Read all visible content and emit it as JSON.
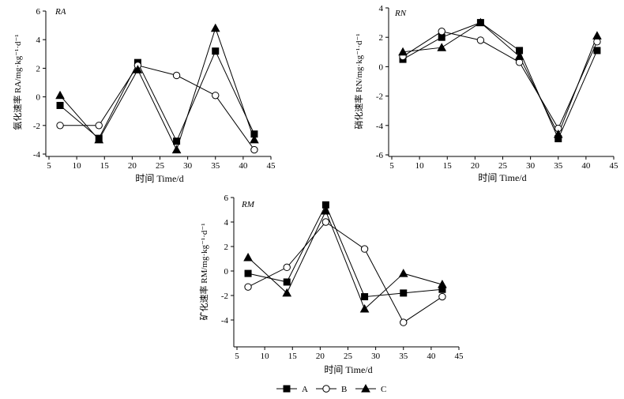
{
  "chart_data": [
    {
      "id": "RA",
      "type": "line",
      "panel_label": "RA",
      "xlabel": "时间 Time/d",
      "ylabel": "氨化速率 RA/mg·kg⁻¹·d⁻¹",
      "xlim": [
        5,
        45
      ],
      "ylim": [
        -4,
        6
      ],
      "x_ticks": [
        5,
        10,
        15,
        20,
        25,
        30,
        35,
        40,
        45
      ],
      "y_ticks": [
        -4,
        -2,
        0,
        2,
        4,
        6
      ],
      "x": [
        7,
        14,
        21,
        28,
        35,
        42
      ],
      "series": [
        {
          "name": "A",
          "marker": "square",
          "values": [
            -0.6,
            -2.9,
            2.4,
            -3.1,
            3.2,
            -2.6
          ]
        },
        {
          "name": "B",
          "marker": "circle",
          "values": [
            -2.0,
            -2.0,
            2.2,
            1.5,
            0.1,
            -3.7
          ]
        },
        {
          "name": "C",
          "marker": "triangle",
          "values": [
            0.1,
            -3.0,
            1.9,
            -3.7,
            4.8,
            -3.0
          ]
        }
      ]
    },
    {
      "id": "RN",
      "type": "line",
      "panel_label": "RN",
      "xlabel": "时间 Time/d",
      "ylabel": "硝化速率 RN/mg·kg⁻¹·d⁻¹",
      "xlim": [
        5,
        45
      ],
      "ylim": [
        -6,
        4
      ],
      "x_ticks": [
        5,
        10,
        15,
        20,
        25,
        30,
        35,
        40,
        45
      ],
      "y_ticks": [
        -6,
        -4,
        -2,
        0,
        2,
        4
      ],
      "x": [
        7,
        14,
        21,
        28,
        35,
        42
      ],
      "series": [
        {
          "name": "A",
          "marker": "square",
          "values": [
            0.5,
            2.0,
            3.0,
            1.1,
            -4.9,
            1.1
          ]
        },
        {
          "name": "B",
          "marker": "circle",
          "values": [
            0.7,
            2.4,
            1.8,
            0.3,
            -4.2,
            1.7
          ]
        },
        {
          "name": "C",
          "marker": "triangle",
          "values": [
            1.0,
            1.3,
            3.0,
            0.7,
            -4.6,
            2.1
          ]
        }
      ]
    },
    {
      "id": "RM",
      "type": "line",
      "panel_label": "RM",
      "xlabel": "时间 Time/d",
      "ylabel": "矿化速率 RM/mg·kg⁻¹·d⁻¹",
      "xlim": [
        5,
        45
      ],
      "ylim": [
        -6,
        6
      ],
      "x_ticks": [
        5,
        10,
        15,
        20,
        25,
        30,
        35,
        40,
        45
      ],
      "y_ticks": [
        -4,
        -2,
        0,
        2,
        4,
        6
      ],
      "x": [
        7,
        14,
        21,
        28,
        35,
        42
      ],
      "series": [
        {
          "name": "A",
          "marker": "square",
          "values": [
            -0.2,
            -0.9,
            5.4,
            -2.1,
            -1.8,
            -1.5
          ]
        },
        {
          "name": "B",
          "marker": "circle",
          "values": [
            -1.3,
            0.3,
            4.0,
            1.8,
            -4.2,
            -2.1
          ]
        },
        {
          "name": "C",
          "marker": "triangle",
          "values": [
            1.1,
            -1.8,
            4.9,
            -3.1,
            -0.2,
            -1.1
          ]
        }
      ]
    }
  ],
  "legend": {
    "items": [
      {
        "name": "A",
        "marker": "square"
      },
      {
        "name": "B",
        "marker": "circle"
      },
      {
        "name": "C",
        "marker": "triangle"
      }
    ]
  }
}
